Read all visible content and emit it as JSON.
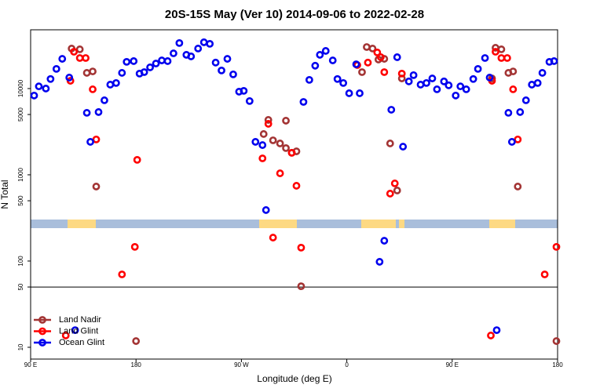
{
  "chart_data": {
    "type": "scatter",
    "title": "20S-15S May (Ver 10)   2014-09-06 to 2022-02-28",
    "xlabel": "Longitude (deg E)",
    "ylabel": "N Total",
    "log_y": true,
    "xlim": [
      90,
      540
    ],
    "ylim": [
      7.3,
      48000
    ],
    "xticks": [
      {
        "value": 90,
        "label": "90 E"
      },
      180,
      {
        "value": 270,
        "label": "90 W"
      },
      {
        "value": 360,
        "label": "0"
      },
      {
        "value": 450,
        "label": "90 E"
      },
      {
        "value": 540,
        "label": "180"
      }
    ],
    "yticks": [
      10,
      50,
      100,
      500,
      1000,
      5000,
      10000
    ],
    "hline": 50,
    "legend": "lower left",
    "series": [
      {
        "name": "Land Nadir",
        "color": "#a33434",
        "x": [
          125,
          132,
          138,
          143,
          146,
          180,
          289,
          293,
          297,
          303,
          308,
          308,
          313,
          317,
          321,
          373,
          377,
          382,
          387,
          392,
          397,
          403,
          407,
          484,
          487,
          492,
          498,
          502,
          506,
          539
        ],
        "values": [
          29100,
          28500,
          15200,
          15800,
          731,
          11.8,
          2970,
          4330,
          2510,
          2310,
          4240,
          2040,
          1800,
          1870,
          51,
          15500,
          30300,
          29100,
          21700,
          22100,
          2310,
          658,
          13100,
          13100,
          29700,
          28500,
          15200,
          15800,
          731,
          11.8
        ]
      },
      {
        "name": "Land Glint",
        "color": "#ff0000",
        "x": [
          120,
          124,
          127,
          132,
          137,
          143,
          146,
          168,
          179,
          181,
          288,
          293,
          297,
          303,
          313,
          317,
          321,
          369,
          378,
          386,
          389,
          392,
          397,
          401,
          407,
          483,
          484,
          487,
          492,
          497,
          502,
          506,
          529,
          539
        ],
        "values": [
          13.7,
          12300,
          26700,
          22600,
          22600,
          9800,
          2570,
          70,
          146,
          1490,
          1550,
          3900,
          187,
          1040,
          1800,
          746,
          143,
          18700,
          20000,
          26200,
          23100,
          15500,
          605,
          795,
          14900,
          13.7,
          12300,
          26700,
          22600,
          22600,
          9800,
          2570,
          70,
          146
        ]
      },
      {
        "name": "Ocean Glint",
        "color": "#0000ee",
        "x": [
          93,
          97,
          103,
          107,
          112,
          117,
          123,
          128,
          138,
          141,
          148,
          153,
          158,
          163,
          168,
          172,
          178,
          183,
          187,
          192,
          197,
          202,
          207,
          212,
          217,
          223,
          227,
          233,
          238,
          243,
          248,
          253,
          258,
          263,
          268,
          272,
          277,
          282,
          288,
          291,
          323,
          328,
          333,
          337,
          342,
          348,
          352,
          357,
          362,
          368,
          371,
          388,
          392,
          398,
          403,
          408,
          413,
          417,
          423,
          428,
          433,
          437,
          443,
          447,
          453,
          457,
          462,
          468,
          472,
          478,
          482,
          488,
          498,
          501,
          508,
          513,
          518,
          523,
          527,
          533,
          537
        ],
        "values": [
          8300,
          10600,
          10000,
          12900,
          16900,
          22100,
          13400,
          15.8,
          5230,
          2410,
          5340,
          7310,
          11100,
          11600,
          15200,
          20400,
          20800,
          14900,
          15500,
          17600,
          19500,
          21200,
          20800,
          25600,
          33700,
          24600,
          23600,
          29100,
          34400,
          33000,
          20000,
          16200,
          22100,
          14600,
          9200,
          9400,
          7160,
          2410,
          2210,
          390,
          7000,
          12600,
          18400,
          24600,
          27300,
          21200,
          12900,
          11600,
          8820,
          19100,
          8820,
          98,
          172,
          5680,
          23100,
          2120,
          12100,
          14300,
          11100,
          11600,
          13100,
          9800,
          12100,
          10900,
          8300,
          10600,
          9800,
          12900,
          16900,
          22600,
          13400,
          15.8,
          5230,
          2410,
          5340,
          7310,
          11100,
          11600,
          15200,
          20400,
          20800
        ]
      }
    ]
  }
}
